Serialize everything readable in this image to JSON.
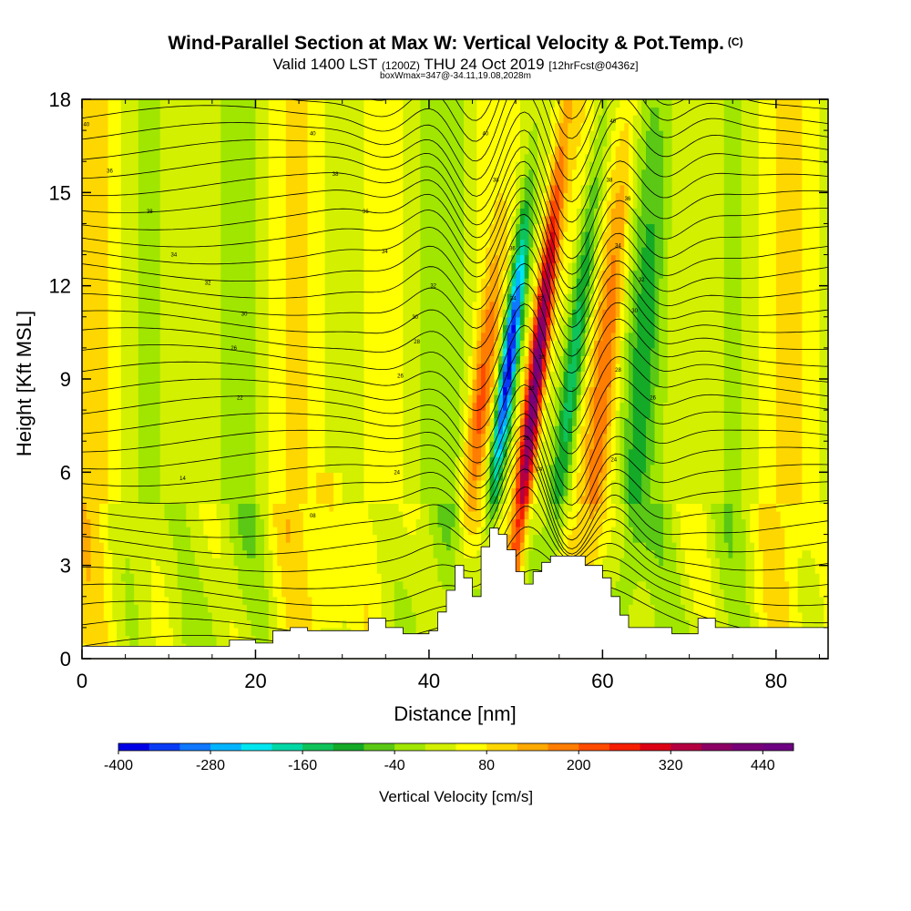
{
  "chart_data": {
    "type": "heatmap",
    "title": "Wind-Parallel Section at Max W: Vertical Velocity & Pot.Temp.",
    "title_mark": "(C)",
    "subtitle_main": "Valid 1400 LST",
    "subtitle_utc": "(1200Z)",
    "subtitle_date": "THU 24 Oct 2019",
    "subtitle_fcst": "[12hrFcst@0436z]",
    "box_info": "boxWmax=347@-34.11,19.08,2028m",
    "xlabel": "Distance [nm]",
    "ylabel": "Height [Kft MSL]",
    "xlim": [
      0,
      86
    ],
    "ylim": [
      0,
      18
    ],
    "x_ticks": [
      0,
      20,
      40,
      60,
      80
    ],
    "x_tick_labels": [
      "0",
      "20",
      "40",
      "60",
      "80"
    ],
    "y_ticks": [
      0,
      3,
      6,
      9,
      12,
      15,
      18
    ],
    "y_tick_labels": [
      "0",
      "3",
      "6",
      "9",
      "12",
      "15",
      "18"
    ],
    "colorbar": {
      "label": "Vertical Velocity [cm/s]",
      "min": -400,
      "max": 480,
      "step": 40,
      "tick_values": [
        -400,
        -280,
        -160,
        -40,
        80,
        200,
        320,
        440
      ],
      "tick_labels": [
        "-400",
        "-280",
        "-160",
        "-40",
        "80",
        "200",
        "320",
        "440"
      ],
      "colors": [
        "#0000e6",
        "#0a3cf5",
        "#0f78ff",
        "#00b4ff",
        "#00e6f0",
        "#00d7a5",
        "#0fc35a",
        "#14aa28",
        "#5ac814",
        "#a0e600",
        "#d2f000",
        "#ffff00",
        "#ffd700",
        "#ffaa00",
        "#ff7d00",
        "#ff4b00",
        "#f51e00",
        "#dc0014",
        "#b40041",
        "#8c0064",
        "#780078",
        "#6e0082"
      ]
    },
    "vertical_velocity_features": [
      {
        "type": "downdraft",
        "center_x_nm": 49,
        "height_range_kft": [
          5,
          14
        ],
        "min_cm_s": -400
      },
      {
        "type": "updraft",
        "center_x_nm": 52.3,
        "height_range_kft": [
          5,
          12
        ],
        "max_cm_s": 347
      },
      {
        "type": "downdraft",
        "center_x_nm": 56.5,
        "height_range_kft": [
          5,
          16
        ],
        "min_cm_s": -200
      },
      {
        "type": "updraft",
        "center_x_nm": 46.2,
        "height_range_kft": [
          4,
          12
        ],
        "max_cm_s": 200
      },
      {
        "type": "updraft",
        "center_x_nm": 60,
        "height_range_kft": [
          3,
          16
        ],
        "max_cm_s": 160
      }
    ],
    "terrain_kft": {
      "x": [
        0,
        15,
        17,
        20,
        22,
        24,
        26,
        33,
        35,
        37,
        40,
        41,
        42,
        43,
        44,
        45,
        46,
        47,
        48,
        49,
        50,
        51,
        52,
        53,
        54,
        56,
        58,
        60,
        61,
        62,
        63,
        66,
        68,
        71,
        73,
        86
      ],
      "height": [
        0.4,
        0.4,
        0.6,
        0.5,
        0.9,
        1.0,
        0.9,
        1.3,
        1.0,
        0.8,
        0.9,
        1.5,
        2.2,
        3.0,
        2.6,
        2.0,
        3.6,
        4.2,
        4.0,
        3.5,
        2.8,
        2.4,
        2.8,
        3.1,
        3.3,
        3.3,
        3.0,
        2.6,
        2.0,
        1.4,
        1.0,
        1.0,
        0.8,
        1.3,
        1.0,
        1.0
      ]
    },
    "theta_contour_labels": [
      {
        "text": "40",
        "x_nm": 0.5,
        "y_kft": 17.2
      },
      {
        "text": "36",
        "x_nm": 3.2,
        "y_kft": 15.7
      },
      {
        "text": "38",
        "x_nm": 7.8,
        "y_kft": 14.4
      },
      {
        "text": "34",
        "x_nm": 10.6,
        "y_kft": 13.0
      },
      {
        "text": "32",
        "x_nm": 14.5,
        "y_kft": 12.1
      },
      {
        "text": "30",
        "x_nm": 18.7,
        "y_kft": 11.1
      },
      {
        "text": "26",
        "x_nm": 17.5,
        "y_kft": 10.0
      },
      {
        "text": "22",
        "x_nm": 18.2,
        "y_kft": 8.4
      },
      {
        "text": "14",
        "x_nm": 11.6,
        "y_kft": 5.8
      },
      {
        "text": "08",
        "x_nm": 26.6,
        "y_kft": 4.6
      },
      {
        "text": "40",
        "x_nm": 26.6,
        "y_kft": 16.9
      },
      {
        "text": "38",
        "x_nm": 29.2,
        "y_kft": 15.6
      },
      {
        "text": "36",
        "x_nm": 32.7,
        "y_kft": 14.4
      },
      {
        "text": "34",
        "x_nm": 34.9,
        "y_kft": 13.1
      },
      {
        "text": "32",
        "x_nm": 40.5,
        "y_kft": 12.0
      },
      {
        "text": "30",
        "x_nm": 38.4,
        "y_kft": 11.0
      },
      {
        "text": "28",
        "x_nm": 38.6,
        "y_kft": 10.2
      },
      {
        "text": "26",
        "x_nm": 36.7,
        "y_kft": 9.1
      },
      {
        "text": "24",
        "x_nm": 36.3,
        "y_kft": 6.0
      },
      {
        "text": "40",
        "x_nm": 46.5,
        "y_kft": 16.9
      },
      {
        "text": "38",
        "x_nm": 47.7,
        "y_kft": 15.4
      },
      {
        "text": "36",
        "x_nm": 49.6,
        "y_kft": 13.2
      },
      {
        "text": "34",
        "x_nm": 49.7,
        "y_kft": 11.6
      },
      {
        "text": "32",
        "x_nm": 52.8,
        "y_kft": 11.6
      },
      {
        "text": "30",
        "x_nm": 53.0,
        "y_kft": 9.7
      },
      {
        "text": "28",
        "x_nm": 51.8,
        "y_kft": 8.7
      },
      {
        "text": "26",
        "x_nm": 51.2,
        "y_kft": 7.1
      },
      {
        "text": "24",
        "x_nm": 52.7,
        "y_kft": 6.1
      },
      {
        "text": "40",
        "x_nm": 61.2,
        "y_kft": 17.3
      },
      {
        "text": "38",
        "x_nm": 60.8,
        "y_kft": 15.4
      },
      {
        "text": "36",
        "x_nm": 62.9,
        "y_kft": 14.8
      },
      {
        "text": "34",
        "x_nm": 61.8,
        "y_kft": 13.3
      },
      {
        "text": "32",
        "x_nm": 64.5,
        "y_kft": 12.2
      },
      {
        "text": "30",
        "x_nm": 63.7,
        "y_kft": 11.2
      },
      {
        "text": "28",
        "x_nm": 61.8,
        "y_kft": 9.3
      },
      {
        "text": "26",
        "x_nm": 65.8,
        "y_kft": 8.4
      },
      {
        "text": "24",
        "x_nm": 61.3,
        "y_kft": 6.4
      }
    ]
  }
}
